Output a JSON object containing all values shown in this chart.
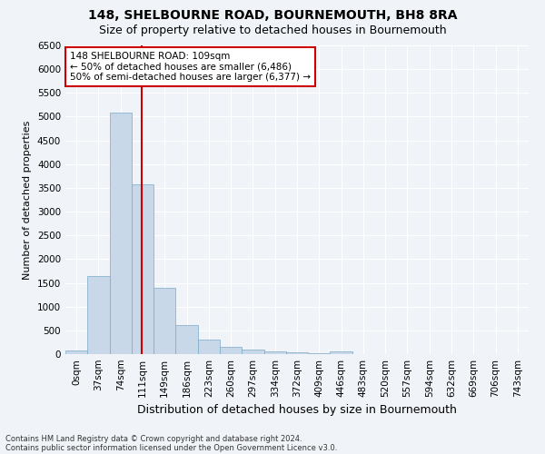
{
  "title": "148, SHELBOURNE ROAD, BOURNEMOUTH, BH8 8RA",
  "subtitle": "Size of property relative to detached houses in Bournemouth",
  "xlabel": "Distribution of detached houses by size in Bournemouth",
  "ylabel": "Number of detached properties",
  "bar_labels": [
    "0sqm",
    "37sqm",
    "74sqm",
    "111sqm",
    "149sqm",
    "186sqm",
    "223sqm",
    "260sqm",
    "297sqm",
    "334sqm",
    "372sqm",
    "409sqm",
    "446sqm",
    "483sqm",
    "520sqm",
    "557sqm",
    "594sqm",
    "632sqm",
    "669sqm",
    "706sqm",
    "743sqm"
  ],
  "bar_values": [
    70,
    1640,
    5080,
    3580,
    1400,
    610,
    300,
    150,
    90,
    55,
    30,
    15,
    65,
    0,
    0,
    0,
    0,
    0,
    0,
    0,
    0
  ],
  "bar_color": "#c8d8e8",
  "bar_edge_color": "#7aaac8",
  "vline_x": 2.97,
  "vline_color": "#cc0000",
  "ylim": [
    0,
    6500
  ],
  "yticks": [
    0,
    500,
    1000,
    1500,
    2000,
    2500,
    3000,
    3500,
    4000,
    4500,
    5000,
    5500,
    6000,
    6500
  ],
  "annotation_text": "148 SHELBOURNE ROAD: 109sqm\n← 50% of detached houses are smaller (6,486)\n50% of semi-detached houses are larger (6,377) →",
  "annotation_box_color": "#ffffff",
  "annotation_box_edge_color": "#cc0000",
  "footnote1": "Contains HM Land Registry data © Crown copyright and database right 2024.",
  "footnote2": "Contains public sector information licensed under the Open Government Licence v3.0.",
  "bg_color": "#f0f4f8",
  "grid_color": "#ffffff",
  "title_fontsize": 10,
  "subtitle_fontsize": 9,
  "ylabel_fontsize": 8,
  "xlabel_fontsize": 9,
  "tick_fontsize": 7.5,
  "annot_fontsize": 7.5,
  "footnote_fontsize": 6
}
